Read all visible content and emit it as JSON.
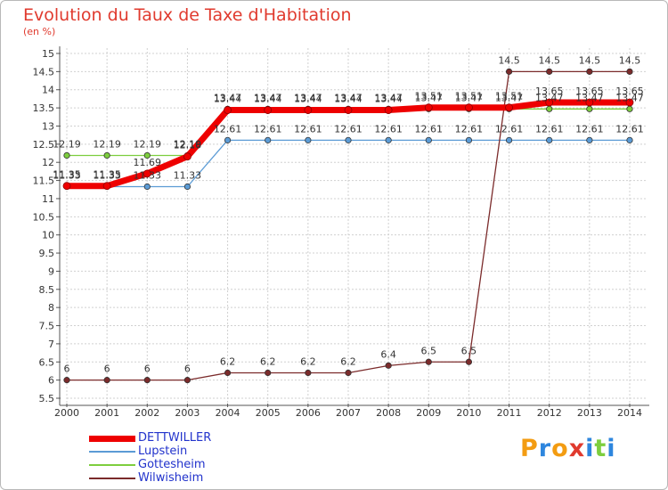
{
  "chart_data": {
    "type": "line",
    "title": "Evolution du Taux de Taxe d'Habitation",
    "subtitle": "(en %)",
    "xlabel": "",
    "ylabel": "",
    "x": [
      "2000",
      "2001",
      "2002",
      "2003",
      "2004",
      "2005",
      "2006",
      "2007",
      "2008",
      "2009",
      "2010",
      "2011",
      "2012",
      "2013",
      "2014"
    ],
    "ylim": [
      5.5,
      15
    ],
    "y_ticks": [
      "5.5",
      "6",
      "6.5",
      "7",
      "7.5",
      "8",
      "8.5",
      "9",
      "9.5",
      "10",
      "10.5",
      "11",
      "11.5",
      "12",
      "12.5",
      "13",
      "13.5",
      "14",
      "14.5",
      "15"
    ],
    "grid": true,
    "legend_position": "bottom-left",
    "series": [
      {
        "name": "Lupstein",
        "color": "#5b9bd5",
        "values": [
          11.33,
          11.33,
          11.33,
          11.33,
          12.61,
          12.61,
          12.61,
          12.61,
          12.61,
          12.61,
          12.61,
          12.61,
          12.61,
          12.61,
          12.61
        ],
        "labels": [
          "11.33",
          "11.33",
          "11.33",
          "11.33",
          "12.61",
          "12.61",
          "12.61",
          "12.61",
          "12.61",
          "12.61",
          "12.61",
          "12.61",
          "12.61",
          "12.61",
          "12.61"
        ]
      },
      {
        "name": "Gottesheim",
        "color": "#7dce3e",
        "values": [
          12.19,
          12.19,
          12.19,
          12.19,
          13.47,
          13.47,
          13.47,
          13.47,
          13.47,
          13.47,
          13.47,
          13.47,
          13.47,
          13.47,
          13.47
        ],
        "labels": [
          "12.19",
          "12.19",
          "12.19",
          "12.19",
          "13.47",
          "13.47",
          "13.47",
          "13.47",
          "13.47",
          "13.47",
          "13.47",
          "13.47",
          "13.47",
          "13.47",
          "13.47"
        ]
      },
      {
        "name": "Wilwisheim",
        "color": "#7b2b2b",
        "values": [
          6,
          6,
          6,
          6,
          6.2,
          6.2,
          6.2,
          6.2,
          6.4,
          6.5,
          6.5,
          14.5,
          14.5,
          14.5,
          14.5
        ],
        "labels": [
          "6",
          "6",
          "6",
          "6",
          "6.2",
          "6.2",
          "6.2",
          "6.2",
          "6.4",
          "6.5",
          "6.5",
          "14.5",
          "14.5",
          "14.5",
          "14.5"
        ]
      },
      {
        "name": "DETTWILLER",
        "color": "#ee0000",
        "values": [
          11.35,
          11.35,
          11.69,
          12.16,
          13.44,
          13.44,
          13.44,
          13.44,
          13.44,
          13.51,
          13.51,
          13.51,
          13.65,
          13.65,
          13.65
        ],
        "labels": [
          "11.35",
          "11.35",
          "11.69",
          "12.16",
          "13.44",
          "13.44",
          "13.44",
          "13.44",
          "13.44",
          "13.51",
          "13.51",
          "13.51",
          "13.65",
          "13.65",
          "13.65"
        ]
      }
    ]
  },
  "legend": {
    "items": [
      {
        "label": "DETTWILLER",
        "color": "#ee0000"
      },
      {
        "label": "Lupstein",
        "color": "#5b9bd5"
      },
      {
        "label": "Gottesheim",
        "color": "#7dce3e"
      },
      {
        "label": "Wilwisheim",
        "color": "#7b2b2b"
      }
    ]
  },
  "brand": {
    "name": "Proxiti",
    "letters": [
      {
        "ch": "P",
        "color": "#f39c12"
      },
      {
        "ch": "r",
        "color": "#2e86de"
      },
      {
        "ch": "o",
        "color": "#f39c12"
      },
      {
        "ch": "x",
        "color": "#e03a2e"
      },
      {
        "ch": "i",
        "color": "#2e86de"
      },
      {
        "ch": "t",
        "color": "#7dce3e"
      },
      {
        "ch": "i",
        "color": "#2e86de"
      }
    ]
  }
}
